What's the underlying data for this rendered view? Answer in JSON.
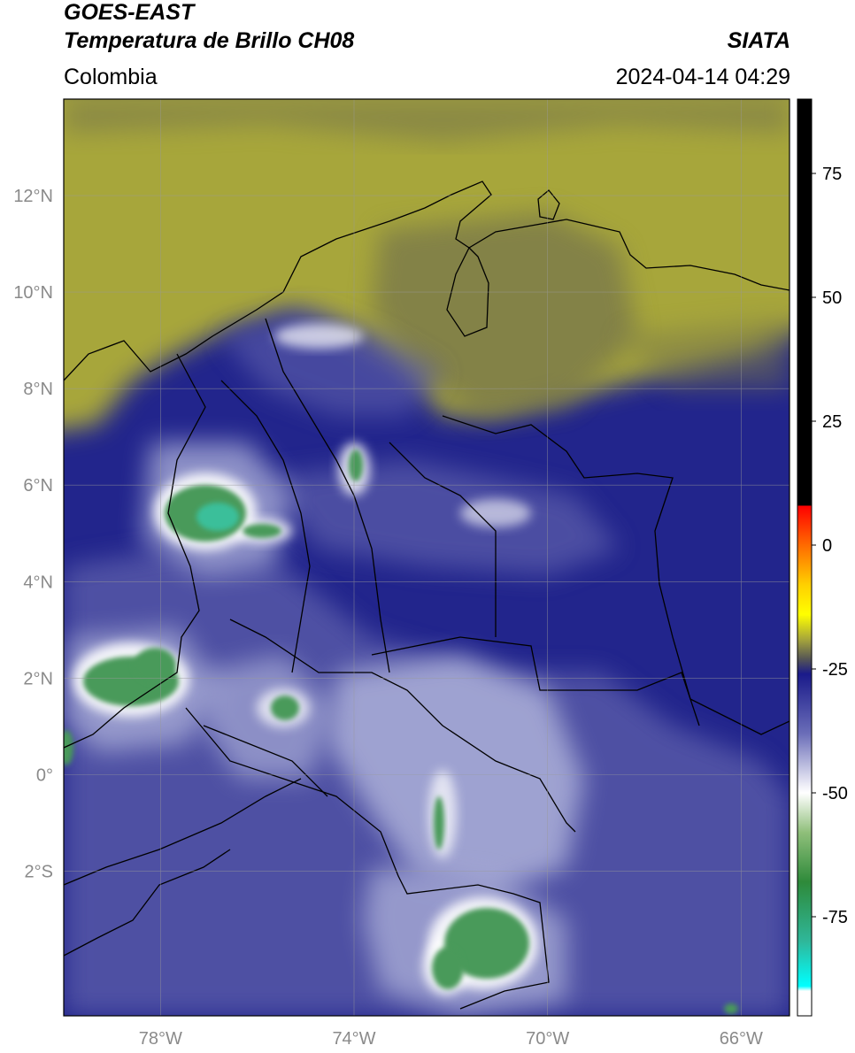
{
  "header": {
    "title_line1": "GOES-EAST",
    "title_line2": "Temperatura de Brillo CH08",
    "agency": "SIATA",
    "region": "Colombia",
    "timestamp": "2024-04-14 04:29"
  },
  "map": {
    "lon_range": [
      -80,
      -65
    ],
    "lat_range": [
      -5,
      14
    ],
    "lat_ticks": [
      {
        "value": 12,
        "label": "12°N"
      },
      {
        "value": 10,
        "label": "10°N"
      },
      {
        "value": 8,
        "label": "8°N"
      },
      {
        "value": 6,
        "label": "6°N"
      },
      {
        "value": 4,
        "label": "4°N"
      },
      {
        "value": 2,
        "label": "2°N"
      },
      {
        "value": 0,
        "label": "0°"
      },
      {
        "value": -2,
        "label": "2°S"
      }
    ],
    "lon_ticks": [
      {
        "value": -78,
        "label": "78°W"
      },
      {
        "value": -74,
        "label": "74°W"
      },
      {
        "value": -70,
        "label": "70°W"
      },
      {
        "value": -66,
        "label": "66°W"
      }
    ],
    "colors": {
      "yellow_olive": "#a7a63a",
      "gray_olive": "#77764b",
      "navy": "#22258c",
      "mid_blue": "#5659a8",
      "light_blue": "#a7abd6",
      "white": "#ffffff",
      "green": "#4a9a5a",
      "teal": "#3bbf9a"
    }
  },
  "colorbar": {
    "range": [
      -95,
      90
    ],
    "ticks": [
      {
        "value": 75,
        "label": "75"
      },
      {
        "value": 50,
        "label": "50"
      },
      {
        "value": 25,
        "label": "25"
      },
      {
        "value": 0,
        "label": "0"
      },
      {
        "value": -25,
        "label": "-25"
      },
      {
        "value": -50,
        "label": "-50"
      },
      {
        "value": -75,
        "label": "-75"
      }
    ],
    "stops": [
      {
        "value": 90,
        "color": "#000000"
      },
      {
        "value": 8,
        "color": "#000000"
      },
      {
        "value": 7.9,
        "color": "#ff0000"
      },
      {
        "value": 0,
        "color": "#ff6a00"
      },
      {
        "value": -8,
        "color": "#ffd000"
      },
      {
        "value": -14,
        "color": "#ffff00"
      },
      {
        "value": -19,
        "color": "#a7a63a"
      },
      {
        "value": -23,
        "color": "#555555"
      },
      {
        "value": -26,
        "color": "#1a1a8a"
      },
      {
        "value": -38,
        "color": "#6a6db8"
      },
      {
        "value": -48,
        "color": "#e8e8f4"
      },
      {
        "value": -50,
        "color": "#ffffff"
      },
      {
        "value": -58,
        "color": "#8fbf7a"
      },
      {
        "value": -68,
        "color": "#2e8a3a"
      },
      {
        "value": -80,
        "color": "#2fb79a"
      },
      {
        "value": -89,
        "color": "#00ffff"
      },
      {
        "value": -90,
        "color": "#ffffff"
      },
      {
        "value": -95,
        "color": "#ffffff"
      }
    ]
  }
}
